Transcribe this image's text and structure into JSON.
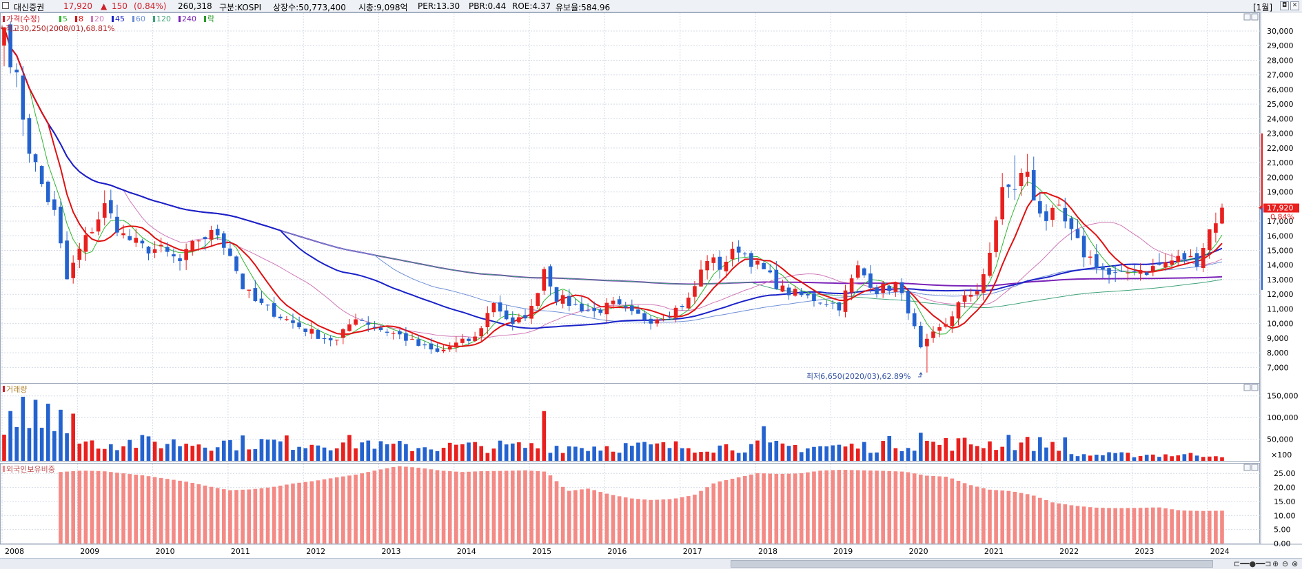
{
  "header": {
    "stock_name": "대신증권",
    "price": "17,920",
    "change_arrow": "▲",
    "change": "150",
    "change_pct": "(0.84%)",
    "volume": "260,318",
    "market": "구분:KOSPI",
    "shares": "상장수:50,773,400",
    "market_cap": "시총:9,098억",
    "per": "PER:13.30",
    "pbr": "PBR:0.44",
    "roe": "ROE:4.37",
    "float_ratio": "유보율:584.96",
    "period_button": "[1월]",
    "restore_icon": "◘",
    "close_icon": "✕"
  },
  "colors": {
    "up": "#e8201e",
    "down": "#2463cf",
    "ma5": "#2fb52f",
    "ma8": "#e01010",
    "ma20": "#d07ab8",
    "ma45": "#1a22c8",
    "ma60": "#6e8fd6",
    "ma120": "#3fa37a",
    "ma240": "#7a22b8",
    "foreign_bar": "#f48a85",
    "grid": "#d4dbe6"
  },
  "price_panel": {
    "legend": [
      {
        "label": "가격(수정)",
        "color": "#d0202a"
      },
      {
        "label": "5",
        "color": "#2fb52f"
      },
      {
        "label": "8",
        "color": "#e01010"
      },
      {
        "label": "20",
        "color": "#d07ab8"
      },
      {
        "label": "45",
        "color": "#1a22c8"
      },
      {
        "label": "60",
        "color": "#6e8fd6"
      },
      {
        "label": "120",
        "color": "#3fa37a"
      },
      {
        "label": "240",
        "color": "#7a22b8"
      },
      {
        "label": "락",
        "color": "#2a9a2a"
      }
    ],
    "high_annotation": "최고30,250(2008/01),68.81%",
    "low_annotation": "최저6,650(2020/03),62.89%",
    "current_price_tag": "17,920",
    "current_pct_tag": "0.84%",
    "y_ticks": [
      "30,000",
      "29,000",
      "28,000",
      "27,000",
      "26,000",
      "25,000",
      "24,000",
      "23,000",
      "22,000",
      "21,000",
      "20,000",
      "19,000",
      "18,000",
      "17,000",
      "16,000",
      "15,000",
      "14,000",
      "13,000",
      "12,000",
      "11,000",
      "10,000",
      "9,000",
      "8,000",
      "7,000"
    ]
  },
  "volume_panel": {
    "title": "거래량",
    "y_ticks": [
      "150,000",
      "100,000",
      "50,000"
    ],
    "unit_label": "×100"
  },
  "foreign_panel": {
    "title": "외국인보유비중",
    "y_ticks": [
      "25.00",
      "20.00",
      "15.00",
      "10.00",
      "5.00",
      "0.00"
    ]
  },
  "x_axis": {
    "labels": [
      "2008",
      "2009",
      "2010",
      "2011",
      "2012",
      "2013",
      "2014",
      "2015",
      "2016",
      "2017",
      "2018",
      "2019",
      "2020",
      "2021",
      "2022",
      "2023",
      "2024"
    ]
  },
  "chart_data": {
    "type": "candlestick",
    "period": "monthly",
    "start": "2008-01",
    "months": 195,
    "close_keypoints": [
      [
        0,
        30250
      ],
      [
        2,
        26500
      ],
      [
        4,
        22000
      ],
      [
        6,
        19500
      ],
      [
        8,
        17500
      ],
      [
        10,
        13000
      ],
      [
        12,
        15000
      ],
      [
        14,
        16500
      ],
      [
        16,
        18000
      ],
      [
        19,
        16000
      ],
      [
        22,
        15200
      ],
      [
        25,
        15000
      ],
      [
        28,
        14200
      ],
      [
        31,
        15800
      ],
      [
        34,
        16200
      ],
      [
        36,
        14800
      ],
      [
        38,
        12500
      ],
      [
        40,
        11500
      ],
      [
        44,
        10500
      ],
      [
        47,
        9800
      ],
      [
        50,
        9200
      ],
      [
        53,
        8800
      ],
      [
        56,
        10500
      ],
      [
        60,
        9600
      ],
      [
        63,
        9200
      ],
      [
        66,
        8500
      ],
      [
        69,
        8000
      ],
      [
        72,
        8600
      ],
      [
        75,
        9000
      ],
      [
        78,
        11500
      ],
      [
        81,
        9800
      ],
      [
        84,
        11000
      ],
      [
        86,
        13800
      ],
      [
        88,
        11800
      ],
      [
        91,
        11200
      ],
      [
        94,
        10800
      ],
      [
        97,
        11300
      ],
      [
        100,
        10600
      ],
      [
        103,
        10300
      ],
      [
        106,
        10700
      ],
      [
        109,
        11600
      ],
      [
        112,
        14500
      ],
      [
        114,
        13900
      ],
      [
        117,
        15200
      ],
      [
        119,
        14300
      ],
      [
        121,
        13600
      ],
      [
        124,
        12300
      ],
      [
        127,
        11900
      ],
      [
        130,
        11600
      ],
      [
        133,
        11200
      ],
      [
        136,
        13800
      ],
      [
        139,
        12300
      ],
      [
        142,
        12600
      ],
      [
        144,
        11000
      ],
      [
        146,
        8200
      ],
      [
        148,
        9200
      ],
      [
        150,
        10000
      ],
      [
        152,
        11300
      ],
      [
        155,
        12400
      ],
      [
        157,
        14500
      ],
      [
        159,
        19500
      ],
      [
        161,
        18900
      ],
      [
        162,
        20500
      ],
      [
        163,
        20100
      ],
      [
        164,
        18500
      ],
      [
        166,
        17200
      ],
      [
        168,
        17600
      ],
      [
        170,
        16100
      ],
      [
        172,
        14800
      ],
      [
        174,
        14100
      ],
      [
        176,
        13300
      ],
      [
        178,
        13200
      ],
      [
        180,
        13800
      ],
      [
        182,
        13600
      ],
      [
        184,
        14000
      ],
      [
        186,
        14300
      ],
      [
        188,
        14500
      ],
      [
        190,
        14300
      ],
      [
        192,
        16400
      ],
      [
        194,
        17920
      ]
    ],
    "high_keypoints": [
      [
        0,
        30250
      ],
      [
        146,
        8300
      ],
      [
        147,
        6650
      ],
      [
        161,
        21500
      ],
      [
        163,
        21600
      ],
      [
        194,
        18200
      ]
    ],
    "volume_x100": [
      110000,
      115000,
      142000,
      148000,
      138000,
      141000,
      139000,
      132000,
      125000,
      118000,
      116000,
      109000
    ],
    "foreign_ratio_pct": [
      25.5,
      26.0,
      25.8,
      25.0,
      24.2,
      23.1,
      22.0,
      20.4,
      19.0,
      19.3,
      20.1,
      21.4,
      22.3,
      23.5,
      24.6,
      26.2,
      27.6,
      27.0,
      26.0,
      25.5,
      25.8,
      25.9,
      26.1,
      25.6,
      18.7,
      19.6,
      17.5,
      16.1,
      15.5,
      15.9,
      17.3,
      21.8,
      23.4,
      25.1,
      24.8,
      25.0,
      26.0,
      26.3,
      26.1,
      25.9,
      25.6,
      24.2,
      23.8,
      21.0,
      19.2,
      18.7,
      17.3,
      14.6,
      13.5,
      12.8,
      12.6,
      12.7,
      12.9,
      11.8,
      11.6,
      11.7
    ],
    "foreign_start_month": 9,
    "y_range": [
      6500,
      30800
    ],
    "volume_range_x100": [
      0,
      175000
    ],
    "foreign_range_pct": [
      0,
      28
    ]
  }
}
